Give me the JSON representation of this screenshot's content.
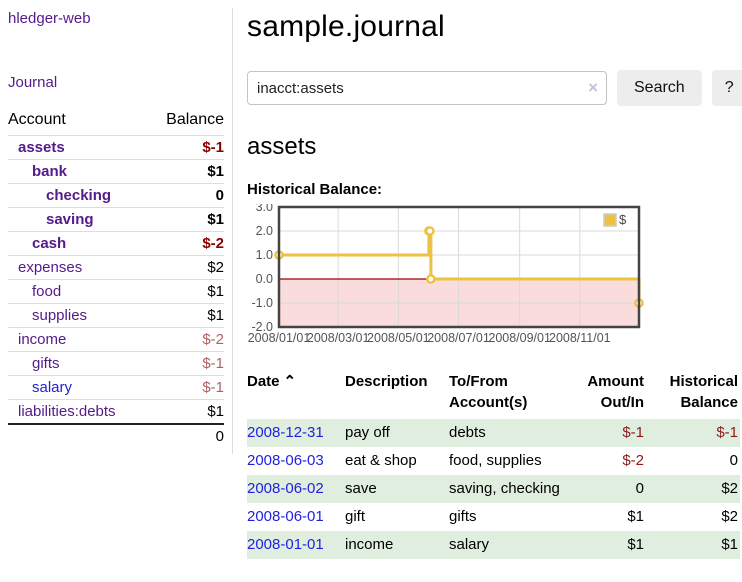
{
  "app": {
    "brand": "hledger-web"
  },
  "sidebar": {
    "journal_link": "Journal",
    "accounts": {
      "headers": {
        "account": "Account",
        "balance": "Balance"
      },
      "rows": [
        {
          "name": "assets",
          "depth": 0,
          "bold": true,
          "link": "visited",
          "balance": "$-1",
          "balance_class": "neg-strong"
        },
        {
          "name": "bank",
          "depth": 1,
          "bold": true,
          "link": "visited",
          "balance": "$1",
          "balance_class": ""
        },
        {
          "name": "checking",
          "depth": 2,
          "bold": true,
          "link": "visited",
          "balance": "0",
          "balance_class": ""
        },
        {
          "name": "saving",
          "depth": 2,
          "bold": true,
          "link": "visited",
          "balance": "$1",
          "balance_class": ""
        },
        {
          "name": "cash",
          "depth": 1,
          "bold": true,
          "link": "visited",
          "balance": "$-2",
          "balance_class": "neg-strong"
        },
        {
          "name": "expenses",
          "depth": 0,
          "bold": false,
          "link": "visited",
          "balance": "$2",
          "balance_class": ""
        },
        {
          "name": "food",
          "depth": 1,
          "bold": false,
          "link": "visited",
          "balance": "$1",
          "balance_class": ""
        },
        {
          "name": "supplies",
          "depth": 1,
          "bold": false,
          "link": "visited",
          "balance": "$1",
          "balance_class": ""
        },
        {
          "name": "income",
          "depth": 0,
          "bold": false,
          "link": "visited",
          "balance": "$-2",
          "balance_class": "neg-dim"
        },
        {
          "name": "gifts",
          "depth": 1,
          "bold": false,
          "link": "visited",
          "balance": "$-1",
          "balance_class": "neg-dim"
        },
        {
          "name": "salary",
          "depth": 1,
          "bold": false,
          "link": "unvisited",
          "balance": "$-1",
          "balance_class": "neg-dim"
        },
        {
          "name": "liabilities:debts",
          "depth": 0,
          "bold": false,
          "link": "visited",
          "balance": "$1",
          "balance_class": ""
        }
      ],
      "total": "0"
    }
  },
  "main": {
    "title": "sample.journal",
    "search": {
      "value": "inacct:assets",
      "clear_icon": "×",
      "search_button": "Search",
      "help_button": "?"
    },
    "account_heading": "assets",
    "chart_label": "Historical Balance:"
  },
  "chart_data": {
    "type": "line",
    "style": "step",
    "title": "Historical Balance",
    "legend": [
      {
        "label": "$",
        "color": "#edc240"
      }
    ],
    "series": [
      {
        "name": "$",
        "points": [
          {
            "date": "2008-01-01",
            "value": 1
          },
          {
            "date": "2008-06-01",
            "value": 2
          },
          {
            "date": "2008-06-02",
            "value": 2
          },
          {
            "date": "2008-06-03",
            "value": 0
          },
          {
            "date": "2008-12-31",
            "value": -1
          }
        ]
      }
    ],
    "x_ticks": [
      "2008/01/01",
      "2008/03/01",
      "2008/05/01",
      "2008/07/01",
      "2008/09/01",
      "2008/11/01"
    ],
    "x_range": [
      "2008-01-01",
      "2008-12-31"
    ],
    "y_ticks": [
      "3.0",
      "2.0",
      "1.0",
      "0.0",
      "-1.0",
      "-2.0"
    ],
    "ylim": [
      -2,
      3
    ],
    "grid": true,
    "negative_region_color": "#fbdcdc",
    "zero_line_color": "#a00000",
    "line_color": "#edc240",
    "border_color": "#444444"
  },
  "register": {
    "headers": {
      "date": "Date",
      "sort_icon": "⌃",
      "description": "Description",
      "accounts": "To/From Account(s)",
      "amount": "Amount Out/In",
      "balance": "Historical Balance"
    },
    "rows": [
      {
        "date": "2008-12-31",
        "description": "pay off",
        "accounts": "debts",
        "amount": "$-1",
        "amount_neg": true,
        "balance": "$-1",
        "balance_neg": true
      },
      {
        "date": "2008-06-03",
        "description": "eat & shop",
        "accounts": "food, supplies",
        "amount": "$-2",
        "amount_neg": true,
        "balance": "0",
        "balance_neg": false
      },
      {
        "date": "2008-06-02",
        "description": "save",
        "accounts": "saving, checking",
        "amount": "0",
        "amount_neg": false,
        "balance": "$2",
        "balance_neg": false
      },
      {
        "date": "2008-06-01",
        "description": "gift",
        "accounts": "gifts",
        "amount": "$1",
        "amount_neg": false,
        "balance": "$2",
        "balance_neg": false
      },
      {
        "date": "2008-01-01",
        "description": "income",
        "accounts": "salary",
        "amount": "$1",
        "amount_neg": false,
        "balance": "$1",
        "balance_neg": false
      }
    ]
  }
}
